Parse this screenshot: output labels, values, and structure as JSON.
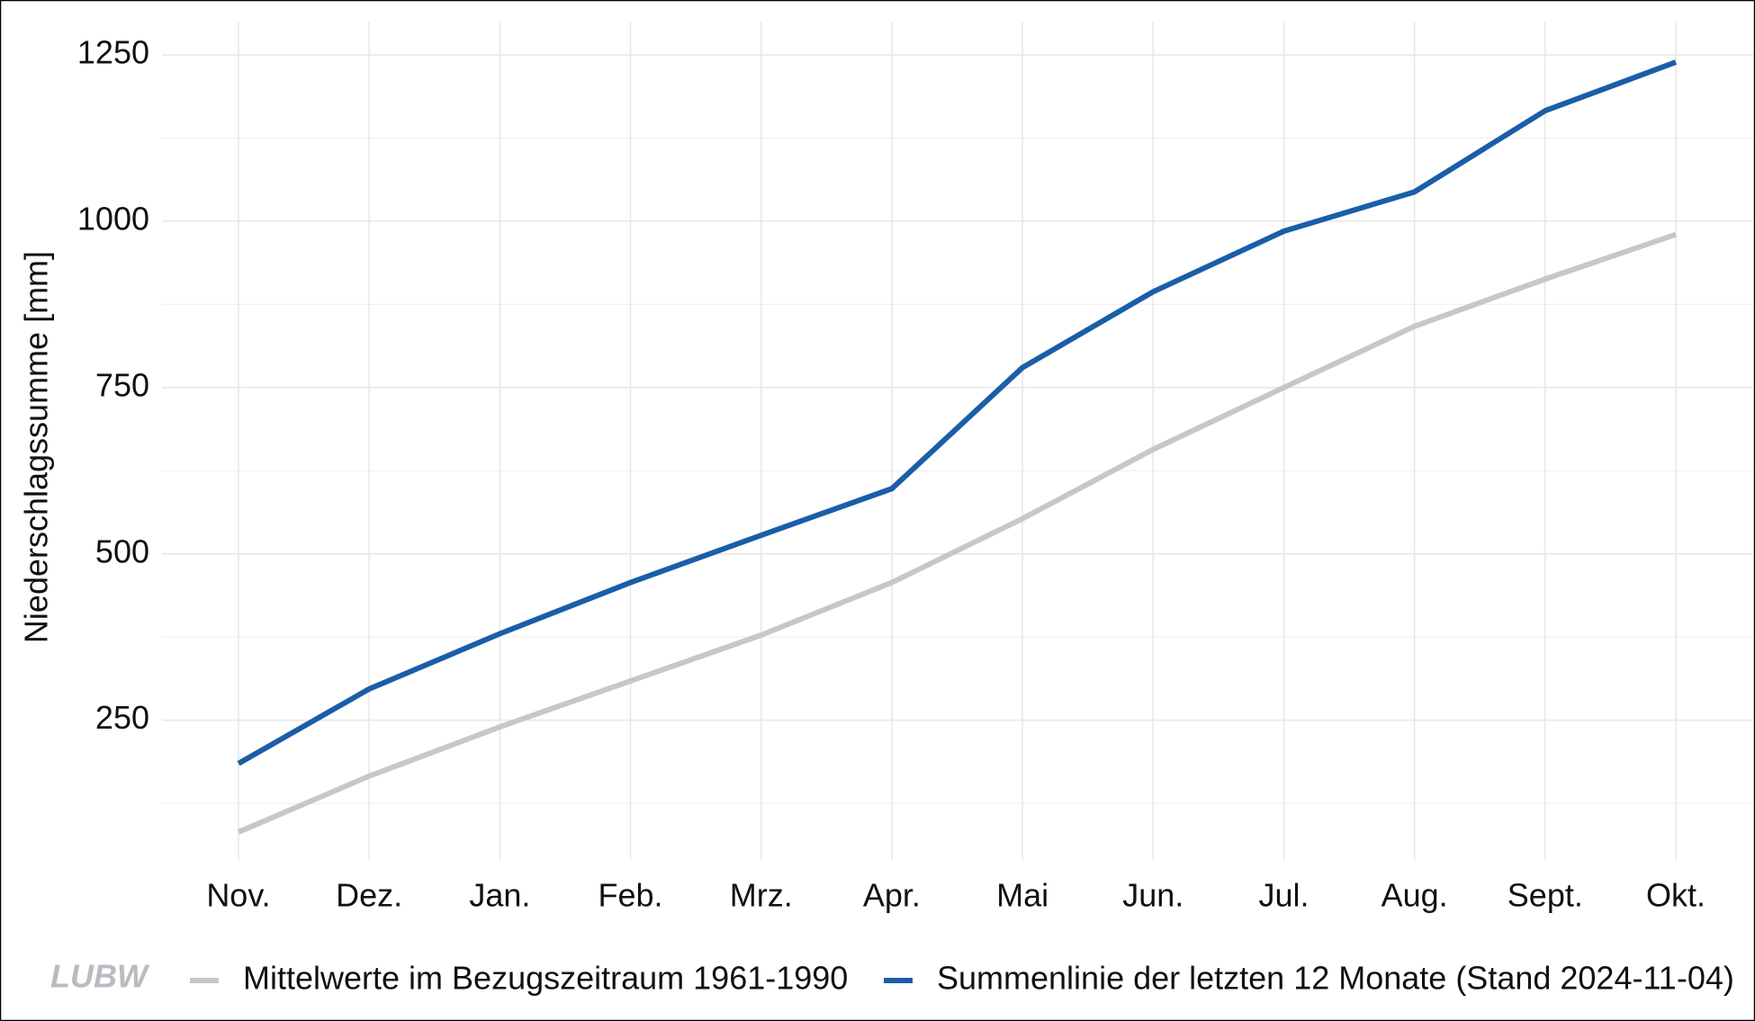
{
  "chart_data": {
    "type": "line",
    "y_label": "Niederschlagssumme [mm]",
    "logo": "LUBW",
    "categories": [
      "Nov.",
      "Dez.",
      "Jan.",
      "Feb.",
      "Mrz.",
      "Apr.",
      "Mai",
      "Jun.",
      "Jul.",
      "Aug.",
      "Sept.",
      "Okt."
    ],
    "series": [
      {
        "name": "Mittelwerte im Bezugszeitraum 1961-1990",
        "color": "#c6c8c6",
        "values": [
          82,
          166,
          240,
          309,
          378,
          457,
          553,
          657,
          750,
          842,
          913,
          980
        ]
      },
      {
        "name": "Summenlinie der letzten 12 Monate (Stand 2024-11-04)",
        "color": "#1a5ea8",
        "values": [
          185,
          297,
          380,
          457,
          528,
          598,
          780,
          894,
          985,
          1044,
          1166,
          1239
        ]
      }
    ],
    "ylim": [
      40,
      1300
    ],
    "yticks": [
      250,
      500,
      750,
      1000,
      1250
    ],
    "minor_yticks": [
      125,
      375,
      625,
      875,
      1125
    ],
    "grid": true,
    "legend": "bottom"
  }
}
